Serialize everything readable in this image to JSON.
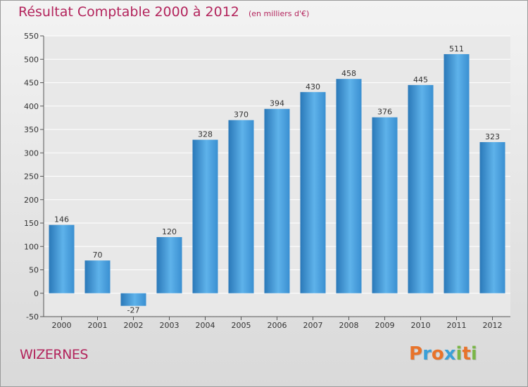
{
  "header": {
    "title": "Résultat Comptable 2000 à 2012",
    "subtitle": "(en milliers d'€)"
  },
  "footer": {
    "commune": "WIZERNES",
    "logo_text": "Proxiti",
    "logo_colors": [
      "#e8732a",
      "#3aa0d8",
      "#e8732a",
      "#3aa0d8",
      "#7ab648",
      "#e8732a",
      "#7ab648"
    ]
  },
  "colors": {
    "bar": "#3a8fd1",
    "bar_light": "#5eb2ea",
    "bar_dark": "#2a78b8",
    "accent": "#b3245c",
    "grid": "#ffffff"
  },
  "chart_data": {
    "type": "bar",
    "title": "Résultat Comptable 2000 à 2012",
    "subtitle": "(en milliers d'€)",
    "categories": [
      "2000",
      "2001",
      "2002",
      "2003",
      "2004",
      "2005",
      "2006",
      "2007",
      "2008",
      "2009",
      "2010",
      "2011",
      "2012"
    ],
    "values": [
      146,
      70,
      -27,
      120,
      328,
      370,
      394,
      430,
      458,
      376,
      445,
      511,
      323
    ],
    "ylim": [
      -50,
      550
    ],
    "yticks": [
      -50,
      0,
      50,
      100,
      150,
      200,
      250,
      300,
      350,
      400,
      450,
      500,
      550
    ],
    "grid": true,
    "legend": "none"
  }
}
